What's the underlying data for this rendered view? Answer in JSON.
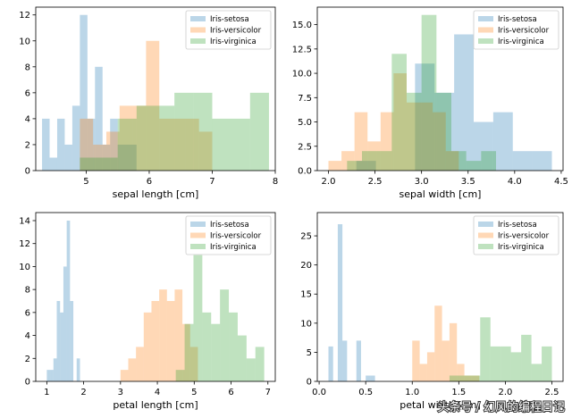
{
  "colors": {
    "setosa": "#1f77b4",
    "versicolor": "#ff7f0e",
    "virginica": "#2ca02c",
    "bar_opacity": 0.3
  },
  "watermark": "头条号 / 幻风的编程日记",
  "chart_data": [
    {
      "type": "histogram",
      "xlabel": "sepal length [cm]",
      "xlim": [
        4.2,
        8.0
      ],
      "ylim": [
        0,
        12.6
      ],
      "xticks": [
        5,
        6,
        7,
        8
      ],
      "yticks": [
        0,
        2,
        4,
        6,
        8,
        10,
        12
      ],
      "legend_position": "top-right",
      "series": [
        {
          "name": "Iris-setosa",
          "key": "setosa",
          "bins": [
            [
              4.3,
              4.42,
              4
            ],
            [
              4.42,
              4.54,
              1
            ],
            [
              4.54,
              4.66,
              4
            ],
            [
              4.66,
              4.78,
              2
            ],
            [
              4.78,
              4.9,
              5
            ],
            [
              4.9,
              5.02,
              12
            ],
            [
              5.02,
              5.14,
              4
            ],
            [
              5.14,
              5.26,
              8
            ],
            [
              5.26,
              5.38,
              2
            ],
            [
              5.38,
              5.5,
              4
            ],
            [
              5.5,
              5.8,
              2
            ]
          ]
        },
        {
          "name": "Iris-versicolor",
          "key": "versicolor",
          "bins": [
            [
              4.9,
              5.11,
              4
            ],
            [
              5.11,
              5.32,
              2
            ],
            [
              5.32,
              5.53,
              3
            ],
            [
              5.53,
              5.74,
              5
            ],
            [
              5.74,
              5.95,
              5
            ],
            [
              5.95,
              6.16,
              10
            ],
            [
              6.16,
              6.37,
              4
            ],
            [
              6.37,
              6.58,
              4
            ],
            [
              6.58,
              6.79,
              4
            ],
            [
              6.79,
              7.0,
              3
            ]
          ]
        },
        {
          "name": "Iris-virginica",
          "key": "virginica",
          "bins": [
            [
              4.9,
              5.2,
              1
            ],
            [
              5.2,
              5.5,
              1
            ],
            [
              5.5,
              5.8,
              4
            ],
            [
              5.8,
              6.1,
              5
            ],
            [
              6.1,
              6.4,
              5
            ],
            [
              6.4,
              6.7,
              6
            ],
            [
              6.7,
              7.0,
              6
            ],
            [
              7.0,
              7.3,
              4
            ],
            [
              7.3,
              7.6,
              4
            ],
            [
              7.6,
              7.9,
              6
            ]
          ]
        }
      ]
    },
    {
      "type": "histogram",
      "xlabel": "sepal width [cm]",
      "xlim": [
        1.88,
        4.52
      ],
      "ylim": [
        0,
        16.8
      ],
      "xticks": [
        2.0,
        2.5,
        3.0,
        3.5,
        4.0,
        4.5
      ],
      "yticks": [
        0.0,
        2.5,
        5.0,
        7.5,
        10.0,
        12.5,
        15.0
      ],
      "legend_position": "top-right",
      "series": [
        {
          "name": "Iris-setosa",
          "key": "setosa",
          "bins": [
            [
              2.3,
              2.51,
              1
            ],
            [
              2.51,
              2.72,
              0
            ],
            [
              2.72,
              2.93,
              0
            ],
            [
              2.93,
              3.14,
              11
            ],
            [
              3.14,
              3.35,
              8
            ],
            [
              3.35,
              3.56,
              14
            ],
            [
              3.56,
              3.77,
              5
            ],
            [
              3.77,
              3.98,
              6
            ],
            [
              3.98,
              4.19,
              2
            ],
            [
              4.19,
              4.4,
              2
            ]
          ]
        },
        {
          "name": "Iris-versicolor",
          "key": "versicolor",
          "bins": [
            [
              2.0,
              2.14,
              1
            ],
            [
              2.14,
              2.28,
              2
            ],
            [
              2.28,
              2.42,
              6
            ],
            [
              2.42,
              2.56,
              3
            ],
            [
              2.56,
              2.7,
              6
            ],
            [
              2.7,
              2.84,
              10
            ],
            [
              2.84,
              2.98,
              7
            ],
            [
              2.98,
              3.12,
              7
            ],
            [
              3.12,
              3.26,
              6
            ],
            [
              3.26,
              3.4,
              2
            ]
          ]
        },
        {
          "name": "Iris-virginica",
          "key": "virginica",
          "bins": [
            [
              2.2,
              2.36,
              1
            ],
            [
              2.36,
              2.52,
              2
            ],
            [
              2.52,
              2.68,
              2
            ],
            [
              2.68,
              2.84,
              12
            ],
            [
              2.84,
              3.0,
              8
            ],
            [
              3.0,
              3.16,
              16
            ],
            [
              3.16,
              3.32,
              8
            ],
            [
              3.32,
              3.48,
              2
            ],
            [
              3.48,
              3.64,
              1
            ],
            [
              3.64,
              3.8,
              2
            ]
          ]
        }
      ]
    },
    {
      "type": "histogram",
      "xlabel": "petal length [cm]",
      "xlim": [
        0.7,
        7.2
      ],
      "ylim": [
        0,
        14.7
      ],
      "xticks": [
        1,
        2,
        3,
        4,
        5,
        6,
        7
      ],
      "yticks": [
        0,
        2,
        4,
        6,
        8,
        10,
        12,
        14
      ],
      "legend_position": "top-right",
      "series": [
        {
          "name": "Iris-setosa",
          "key": "setosa",
          "bins": [
            [
              1.0,
              1.09,
              1
            ],
            [
              1.09,
              1.18,
              1
            ],
            [
              1.18,
              1.27,
              2
            ],
            [
              1.27,
              1.36,
              7
            ],
            [
              1.36,
              1.45,
              6
            ],
            [
              1.45,
              1.54,
              10
            ],
            [
              1.54,
              1.63,
              14
            ],
            [
              1.63,
              1.72,
              7
            ],
            [
              1.72,
              1.81,
              0
            ],
            [
              1.81,
              1.9,
              2
            ]
          ]
        },
        {
          "name": "Iris-versicolor",
          "key": "versicolor",
          "bins": [
            [
              3.0,
              3.21,
              1
            ],
            [
              3.21,
              3.42,
              2
            ],
            [
              3.42,
              3.63,
              3
            ],
            [
              3.63,
              3.84,
              6
            ],
            [
              3.84,
              4.05,
              7
            ],
            [
              4.05,
              4.26,
              8
            ],
            [
              4.26,
              4.47,
              7
            ],
            [
              4.47,
              4.68,
              8
            ],
            [
              4.68,
              4.89,
              5
            ],
            [
              4.89,
              5.1,
              3
            ]
          ]
        },
        {
          "name": "Iris-virginica",
          "key": "virginica",
          "bins": [
            [
              4.5,
              4.74,
              1
            ],
            [
              4.74,
              4.98,
              5
            ],
            [
              4.98,
              5.22,
              11
            ],
            [
              5.22,
              5.46,
              6
            ],
            [
              5.46,
              5.7,
              5
            ],
            [
              5.7,
              5.94,
              8
            ],
            [
              5.94,
              6.18,
              6
            ],
            [
              6.18,
              6.42,
              4
            ],
            [
              6.42,
              6.66,
              2
            ],
            [
              6.66,
              6.9,
              3
            ]
          ]
        }
      ]
    },
    {
      "type": "histogram",
      "xlabel": "petal width [cm]",
      "xlim": [
        -0.02,
        2.62
      ],
      "ylim": [
        0,
        29
      ],
      "xticks": [
        0.0,
        0.5,
        1.0,
        1.5,
        2.0,
        2.5
      ],
      "yticks": [
        0,
        5,
        10,
        15,
        20,
        25
      ],
      "legend_position": "top-right",
      "series": [
        {
          "name": "Iris-setosa",
          "key": "setosa",
          "bins": [
            [
              0.1,
              0.15,
              6
            ],
            [
              0.15,
              0.2,
              0
            ],
            [
              0.2,
              0.25,
              27
            ],
            [
              0.25,
              0.3,
              7
            ],
            [
              0.3,
              0.35,
              0
            ],
            [
              0.35,
              0.4,
              0
            ],
            [
              0.4,
              0.45,
              7
            ],
            [
              0.45,
              0.5,
              0
            ],
            [
              0.5,
              0.55,
              1
            ],
            [
              0.55,
              0.6,
              1
            ]
          ]
        },
        {
          "name": "Iris-versicolor",
          "key": "versicolor",
          "bins": [
            [
              1.0,
              1.08,
              7
            ],
            [
              1.08,
              1.16,
              3
            ],
            [
              1.16,
              1.24,
              5
            ],
            [
              1.24,
              1.32,
              13
            ],
            [
              1.32,
              1.4,
              7
            ],
            [
              1.4,
              1.48,
              10
            ],
            [
              1.48,
              1.56,
              3
            ],
            [
              1.56,
              1.64,
              1
            ],
            [
              1.64,
              1.72,
              1
            ],
            [
              1.72,
              1.8,
              0
            ]
          ]
        },
        {
          "name": "Iris-virginica",
          "key": "virginica",
          "bins": [
            [
              1.4,
              1.51,
              1
            ],
            [
              1.51,
              1.62,
              1
            ],
            [
              1.62,
              1.73,
              1
            ],
            [
              1.73,
              1.84,
              11
            ],
            [
              1.84,
              1.95,
              6
            ],
            [
              1.95,
              2.06,
              6
            ],
            [
              2.06,
              2.17,
              5
            ],
            [
              2.17,
              2.28,
              8
            ],
            [
              2.28,
              2.39,
              3
            ],
            [
              2.39,
              2.5,
              6
            ]
          ]
        }
      ]
    }
  ]
}
